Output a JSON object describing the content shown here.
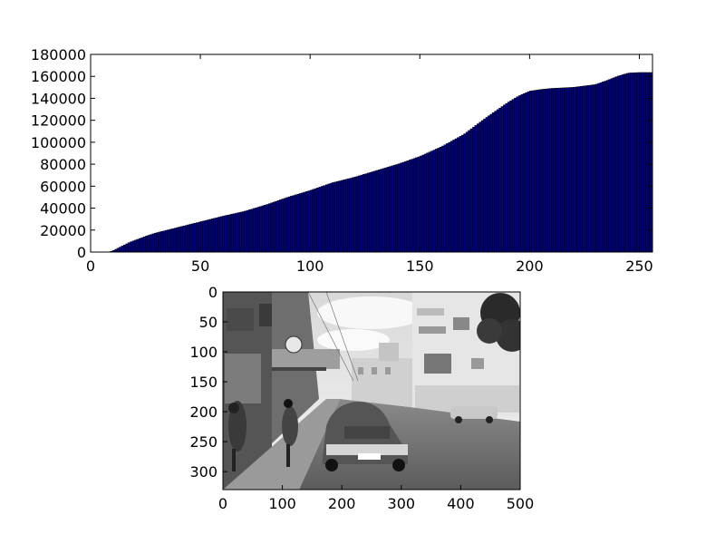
{
  "chart_data": [
    {
      "type": "bar",
      "title": "",
      "xlabel": "",
      "ylabel": "",
      "xlim": [
        0,
        256
      ],
      "ylim": [
        0,
        180000
      ],
      "xticks": [
        0,
        50,
        100,
        150,
        200,
        250
      ],
      "yticks": [
        0,
        20000,
        40000,
        60000,
        80000,
        100000,
        120000,
        140000,
        160000,
        180000
      ],
      "grid": false,
      "bar_color": "#00007f",
      "edge_color": "#000000",
      "x": [
        0,
        256
      ],
      "cumulative_control_points": [
        [
          0,
          0
        ],
        [
          8,
          0
        ],
        [
          10,
          1000
        ],
        [
          12,
          3000
        ],
        [
          15,
          6000
        ],
        [
          18,
          9000
        ],
        [
          22,
          12000
        ],
        [
          26,
          15000
        ],
        [
          30,
          17500
        ],
        [
          35,
          20000
        ],
        [
          40,
          22500
        ],
        [
          45,
          25000
        ],
        [
          50,
          27500
        ],
        [
          55,
          30000
        ],
        [
          60,
          32500
        ],
        [
          70,
          37000
        ],
        [
          80,
          43000
        ],
        [
          90,
          50000
        ],
        [
          100,
          56000
        ],
        [
          110,
          63000
        ],
        [
          120,
          68000
        ],
        [
          130,
          74000
        ],
        [
          140,
          80000
        ],
        [
          150,
          87000
        ],
        [
          160,
          96000
        ],
        [
          170,
          107000
        ],
        [
          180,
          122000
        ],
        [
          190,
          136000
        ],
        [
          195,
          142000
        ],
        [
          200,
          146500
        ],
        [
          205,
          148000
        ],
        [
          210,
          149000
        ],
        [
          220,
          150000
        ],
        [
          230,
          152500
        ],
        [
          235,
          156000
        ],
        [
          240,
          160000
        ],
        [
          245,
          163000
        ],
        [
          250,
          163500
        ],
        [
          256,
          163500
        ]
      ]
    },
    {
      "type": "image",
      "title": "",
      "xlim": [
        0,
        500
      ],
      "ylim": [
        330,
        0
      ],
      "xticks": [
        0,
        100,
        200,
        300,
        400,
        500
      ],
      "yticks": [
        0,
        50,
        100,
        150,
        200,
        250,
        300
      ]
    }
  ]
}
